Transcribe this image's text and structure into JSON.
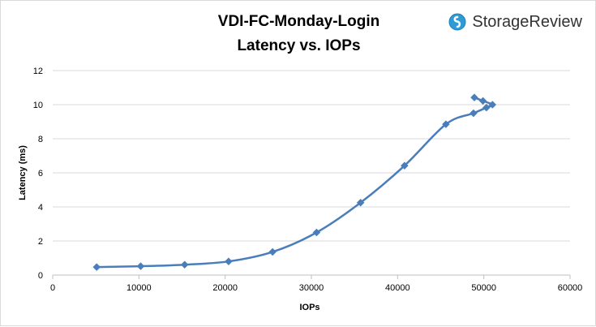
{
  "brand": {
    "name": "StorageReview",
    "accent": "#2e9bd6"
  },
  "chart_data": {
    "type": "scatter",
    "title_line1": "VDI-FC-Monday-Login",
    "title_line2": "Latency vs. IOPs",
    "xlabel": "IOPs",
    "ylabel": "Latency (ms)",
    "xlim": [
      0,
      60000
    ],
    "ylim": [
      0,
      12
    ],
    "x_ticks": [
      0,
      10000,
      20000,
      30000,
      40000,
      50000,
      60000
    ],
    "y_ticks": [
      0,
      2,
      4,
      6,
      8,
      10,
      12
    ],
    "grid": "horizontal",
    "smoothed_line": true,
    "marker": "diamond",
    "series_color": "#4a7ebb",
    "series": [
      {
        "points": [
          {
            "x": 5100,
            "y": 0.47
          },
          {
            "x": 10200,
            "y": 0.52
          },
          {
            "x": 15300,
            "y": 0.61
          },
          {
            "x": 20400,
            "y": 0.8
          },
          {
            "x": 25500,
            "y": 1.36
          },
          {
            "x": 30600,
            "y": 2.5
          },
          {
            "x": 35700,
            "y": 4.25
          },
          {
            "x": 40800,
            "y": 6.42
          },
          {
            "x": 45600,
            "y": 8.85
          },
          {
            "x": 48800,
            "y": 9.5
          },
          {
            "x": 50300,
            "y": 9.83
          },
          {
            "x": 51000,
            "y": 10.0
          },
          {
            "x": 49900,
            "y": 10.22
          },
          {
            "x": 48900,
            "y": 10.42
          }
        ]
      }
    ]
  }
}
